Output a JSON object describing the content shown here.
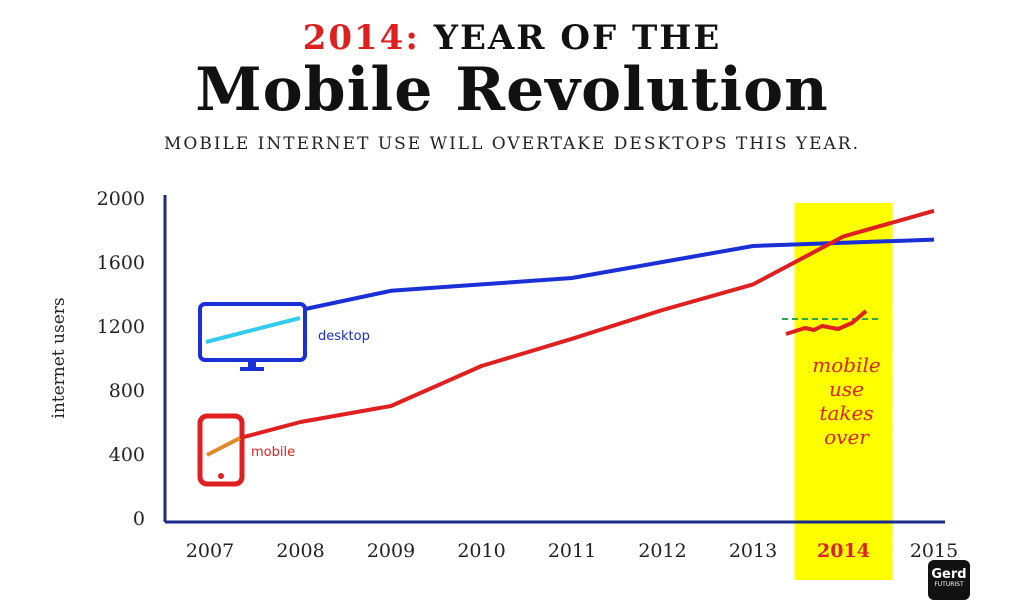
{
  "title": {
    "year_prefix": "2014:",
    "line1_rest": "YEAR OF THE",
    "line2": "Mobile Revolution",
    "subtitle": "MOBILE INTERNET USE WILL OVERTAKE DESKTOPS THIS YEAR."
  },
  "chart_data": {
    "type": "line",
    "title": "",
    "xlabel": "",
    "ylabel": "internet users",
    "categories": [
      "2007",
      "2008",
      "2009",
      "2010",
      "2011",
      "2012",
      "2013",
      "2014",
      "2015"
    ],
    "yticks": [
      "0",
      "400",
      "800",
      "1200",
      "1600",
      "2000"
    ],
    "ylim": [
      0,
      2000
    ],
    "grid": false,
    "highlight": {
      "category": "2014",
      "color": "#ffff00"
    },
    "series": [
      {
        "name": "desktop",
        "color": "#1a2fd6",
        "values": [
          1200,
          1300,
          1420,
          1460,
          1500,
          1600,
          1700,
          1720,
          1740
        ]
      },
      {
        "name": "mobile",
        "color": "#e02020",
        "values": [
          400,
          600,
          700,
          950,
          1120,
          1300,
          1460,
          1760,
          1920
        ]
      }
    ],
    "annotations": [
      {
        "text_lines": [
          "mobile",
          "use",
          "takes",
          "over"
        ],
        "color": "#e02020"
      }
    ],
    "icons": [
      "monitor-icon",
      "smartphone-icon"
    ]
  },
  "logo": {
    "line1": "Gerd",
    "line2": "FUTURIST"
  },
  "colors": {
    "red": "#e02020",
    "blue": "#1a2fd6",
    "yellow": "#ffff00",
    "green": "#2aa84a",
    "cyan": "#33ccee",
    "orange": "#e08a2a"
  }
}
